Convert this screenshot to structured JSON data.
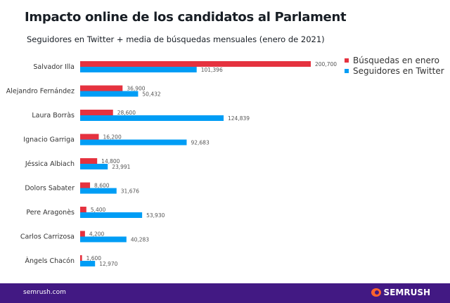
{
  "chart_data": {
    "type": "bar",
    "orientation": "horizontal",
    "title": "Impacto online de los candidatos al Parlament",
    "subtitle": "Seguidores en Twitter + media de búsquedas mensuales (enero de 2021)",
    "categories": [
      "Salvador Illa",
      "Alejandro Fernández",
      "Laura Borràs",
      "Ignacio Garriga",
      "Jéssica Albiach",
      "Dolors Sabater",
      "Pere Aragonès",
      "Carlos Carrizosa",
      "Àngels Chacón"
    ],
    "series": [
      {
        "name": "Búsquedas en enero",
        "color": "#e5323f",
        "values": [
          200700,
          36900,
          28600,
          16200,
          14800,
          8600,
          5400,
          4200,
          1600
        ],
        "labels": [
          "200,700",
          "36,900",
          "28,600",
          "16,200",
          "14,800",
          "8,600",
          "5,400",
          "4,200",
          "1,600"
        ]
      },
      {
        "name": "Seguidores en Twitter",
        "color": "#009df5",
        "values": [
          101396,
          50432,
          124839,
          92683,
          23991,
          31676,
          53930,
          40283,
          12970
        ],
        "labels": [
          "101,396",
          "50,432",
          "124,839",
          "92,683",
          "23,991",
          "31,676",
          "53,930",
          "40,283",
          "12,970"
        ]
      }
    ],
    "xlim": [
      0,
      200700
    ],
    "grid": false,
    "legend": "top-right"
  },
  "footer": {
    "site": "semrush.com",
    "brand": "SEMRUSH"
  }
}
